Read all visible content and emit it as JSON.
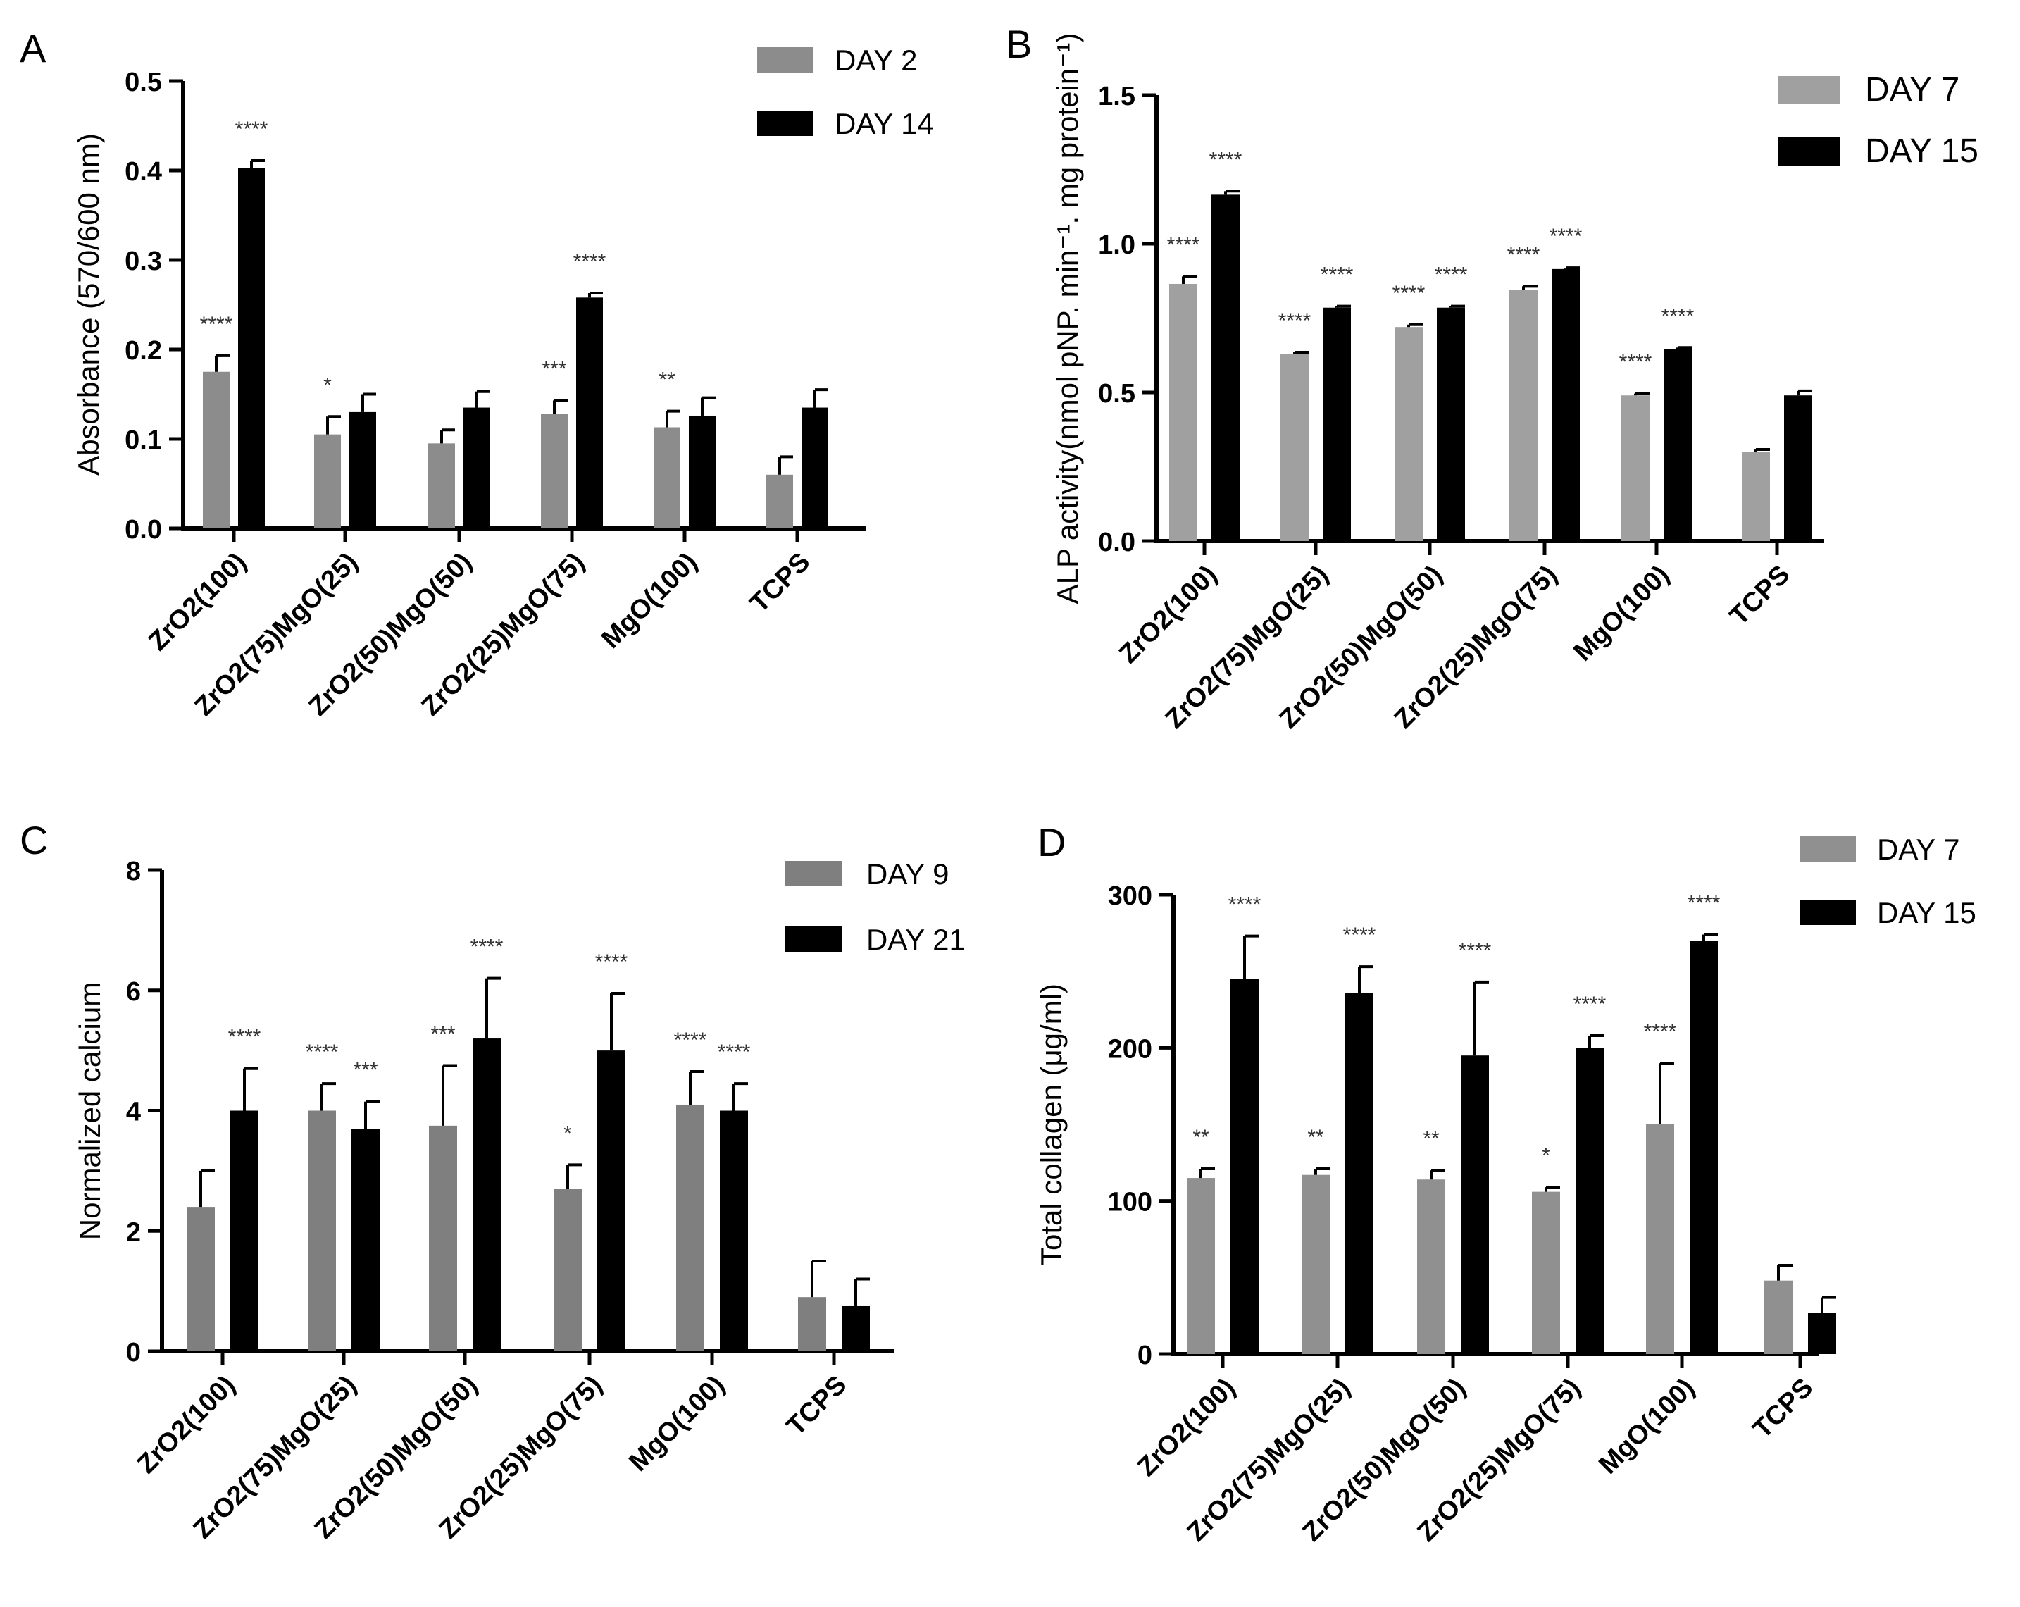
{
  "chart_data": [
    {
      "panel": "A",
      "type": "bar",
      "ylabel": "Absorbance (570/600 nm)",
      "ylim": [
        0,
        0.5
      ],
      "yticks": [
        0.0,
        0.1,
        0.2,
        0.3,
        0.4,
        0.5
      ],
      "ytick_labels": [
        "0.0",
        "0.1",
        "0.2",
        "0.3",
        "0.4",
        "0.5"
      ],
      "categories": [
        "ZrO2(100)",
        "ZrO2(75)MgO(25)",
        "ZrO2(50)MgO(50)",
        "ZrO2(25)MgO(75)",
        "MgO(100)",
        "TCPS"
      ],
      "series": [
        {
          "name": "DAY 2",
          "color": "#8c8c8c",
          "values": [
            0.175,
            0.105,
            0.095,
            0.128,
            0.113,
            0.06
          ],
          "errors": [
            0.018,
            0.02,
            0.015,
            0.015,
            0.018,
            0.02
          ],
          "stars": [
            "****",
            "*",
            "",
            "***",
            "**",
            ""
          ]
        },
        {
          "name": "DAY 14",
          "color": "#000000",
          "values": [
            0.403,
            0.13,
            0.135,
            0.258,
            0.126,
            0.135
          ],
          "errors": [
            0.008,
            0.02,
            0.018,
            0.005,
            0.02,
            0.02
          ],
          "stars": [
            "****",
            "",
            "",
            "****",
            "",
            ""
          ]
        }
      ],
      "legend": "top-right"
    },
    {
      "panel": "B",
      "type": "bar",
      "ylabel": "ALP activity(nmol pNP. min⁻¹. mg protein⁻¹)",
      "ylim": [
        0,
        1.5
      ],
      "yticks": [
        0.0,
        0.5,
        1.0,
        1.5
      ],
      "ytick_labels": [
        "0.0",
        "0.5",
        "1.0",
        "1.5"
      ],
      "categories": [
        "ZrO2(100)",
        "ZrO2(75)MgO(25)",
        "ZrO2(50)MgO(50)",
        "ZrO2(25)MgO(75)",
        "MgO(100)",
        "TCPS"
      ],
      "series": [
        {
          "name": "DAY 7",
          "color": "#a0a0a0",
          "values": [
            0.865,
            0.63,
            0.72,
            0.845,
            0.49,
            0.3
          ],
          "errors": [
            0.025,
            0.005,
            0.008,
            0.012,
            0.006,
            0.008
          ],
          "stars": [
            "****",
            "****",
            "****",
            "****",
            "****",
            ""
          ]
        },
        {
          "name": "DAY 15",
          "color": "#000000",
          "values": [
            1.165,
            0.785,
            0.785,
            0.915,
            0.645,
            0.49
          ],
          "errors": [
            0.012,
            0.005,
            0.005,
            0.004,
            0.006,
            0.015
          ],
          "stars": [
            "****",
            "****",
            "****",
            "****",
            "****",
            ""
          ]
        }
      ],
      "legend": "top-right"
    },
    {
      "panel": "C",
      "type": "bar",
      "ylabel": "Normalized calcium",
      "ylim": [
        0,
        8
      ],
      "yticks": [
        0,
        2,
        4,
        6,
        8
      ],
      "ytick_labels": [
        "0",
        "2",
        "4",
        "6",
        "8"
      ],
      "categories": [
        "ZrO2(100)",
        "ZrO2(75)MgO(25)",
        "ZrO2(50)MgO(50)",
        "ZrO2(25)MgO(75)",
        "MgO(100)",
        "TCPS"
      ],
      "series": [
        {
          "name": "DAY 9",
          "color": "#7f7f7f",
          "values": [
            2.4,
            4.0,
            3.75,
            2.7,
            4.1,
            0.9
          ],
          "errors": [
            0.6,
            0.45,
            1.0,
            0.4,
            0.55,
            0.6
          ],
          "stars": [
            "",
            "****",
            "***",
            "*",
            "****",
            ""
          ]
        },
        {
          "name": "DAY 21",
          "color": "#000000",
          "values": [
            4.0,
            3.7,
            5.2,
            5.0,
            4.0,
            0.75
          ],
          "errors": [
            0.7,
            0.45,
            1.0,
            0.95,
            0.45,
            0.45
          ],
          "stars": [
            "****",
            "***",
            "****",
            "****",
            "****",
            ""
          ]
        }
      ],
      "legend": "top-right"
    },
    {
      "panel": "D",
      "type": "bar",
      "ylabel": "Total collagen (μg/ml)",
      "ylim": [
        0,
        300
      ],
      "yticks": [
        0,
        100,
        200,
        300
      ],
      "ytick_labels": [
        "0",
        "100",
        "200",
        "300"
      ],
      "categories": [
        "ZrO2(100)",
        "ZrO2(75)MgO(25)",
        "ZrO2(50)MgO(50)",
        "ZrO2(25)MgO(75)",
        "MgO(100)",
        "TCPS"
      ],
      "series": [
        {
          "name": "DAY 7",
          "color": "#909090",
          "values": [
            115,
            117,
            114,
            106,
            150,
            48
          ],
          "errors": [
            6,
            4,
            6,
            3,
            40,
            10
          ],
          "stars": [
            "**",
            "**",
            "**",
            "*",
            "****",
            ""
          ]
        },
        {
          "name": "DAY 15",
          "color": "#000000",
          "values": [
            245,
            236,
            195,
            200,
            270,
            27
          ],
          "errors": [
            28,
            17,
            48,
            8,
            4,
            10
          ],
          "stars": [
            "****",
            "****",
            "****",
            "****",
            "****",
            ""
          ]
        }
      ],
      "legend": "top-right"
    }
  ]
}
